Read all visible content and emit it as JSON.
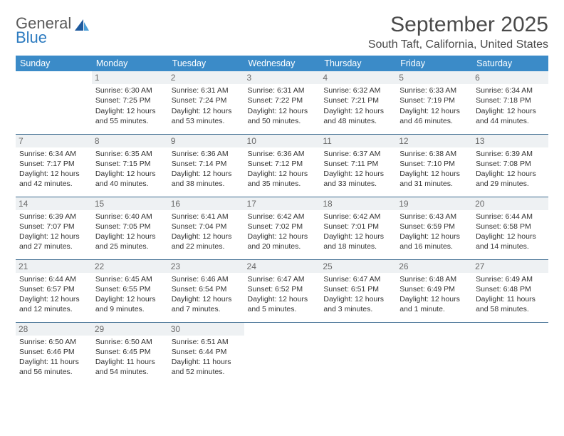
{
  "logo": {
    "general": "General",
    "blue": "Blue"
  },
  "title": "September 2025",
  "location": "South Taft, California, United States",
  "colors": {
    "header_bg": "#3b8bc8",
    "header_fg": "#ffffff",
    "daynum_bg": "#eef1f3",
    "daynum_fg": "#6a6a6a",
    "rule": "#3b6a8f",
    "logo_gray": "#5a5a5a",
    "logo_blue": "#2d7bc0"
  },
  "typography": {
    "title_fontsize": 30,
    "location_fontsize": 16,
    "th_fontsize": 12.5,
    "cell_fontsize": 10.5,
    "daynum_fontsize": 12
  },
  "weekdays": [
    "Sunday",
    "Monday",
    "Tuesday",
    "Wednesday",
    "Thursday",
    "Friday",
    "Saturday"
  ],
  "weeks": [
    [
      null,
      {
        "n": "1",
        "sr": "Sunrise: 6:30 AM",
        "ss": "Sunset: 7:25 PM",
        "dl": "Daylight: 12 hours and 55 minutes."
      },
      {
        "n": "2",
        "sr": "Sunrise: 6:31 AM",
        "ss": "Sunset: 7:24 PM",
        "dl": "Daylight: 12 hours and 53 minutes."
      },
      {
        "n": "3",
        "sr": "Sunrise: 6:31 AM",
        "ss": "Sunset: 7:22 PM",
        "dl": "Daylight: 12 hours and 50 minutes."
      },
      {
        "n": "4",
        "sr": "Sunrise: 6:32 AM",
        "ss": "Sunset: 7:21 PM",
        "dl": "Daylight: 12 hours and 48 minutes."
      },
      {
        "n": "5",
        "sr": "Sunrise: 6:33 AM",
        "ss": "Sunset: 7:19 PM",
        "dl": "Daylight: 12 hours and 46 minutes."
      },
      {
        "n": "6",
        "sr": "Sunrise: 6:34 AM",
        "ss": "Sunset: 7:18 PM",
        "dl": "Daylight: 12 hours and 44 minutes."
      }
    ],
    [
      {
        "n": "7",
        "sr": "Sunrise: 6:34 AM",
        "ss": "Sunset: 7:17 PM",
        "dl": "Daylight: 12 hours and 42 minutes."
      },
      {
        "n": "8",
        "sr": "Sunrise: 6:35 AM",
        "ss": "Sunset: 7:15 PM",
        "dl": "Daylight: 12 hours and 40 minutes."
      },
      {
        "n": "9",
        "sr": "Sunrise: 6:36 AM",
        "ss": "Sunset: 7:14 PM",
        "dl": "Daylight: 12 hours and 38 minutes."
      },
      {
        "n": "10",
        "sr": "Sunrise: 6:36 AM",
        "ss": "Sunset: 7:12 PM",
        "dl": "Daylight: 12 hours and 35 minutes."
      },
      {
        "n": "11",
        "sr": "Sunrise: 6:37 AM",
        "ss": "Sunset: 7:11 PM",
        "dl": "Daylight: 12 hours and 33 minutes."
      },
      {
        "n": "12",
        "sr": "Sunrise: 6:38 AM",
        "ss": "Sunset: 7:10 PM",
        "dl": "Daylight: 12 hours and 31 minutes."
      },
      {
        "n": "13",
        "sr": "Sunrise: 6:39 AM",
        "ss": "Sunset: 7:08 PM",
        "dl": "Daylight: 12 hours and 29 minutes."
      }
    ],
    [
      {
        "n": "14",
        "sr": "Sunrise: 6:39 AM",
        "ss": "Sunset: 7:07 PM",
        "dl": "Daylight: 12 hours and 27 minutes."
      },
      {
        "n": "15",
        "sr": "Sunrise: 6:40 AM",
        "ss": "Sunset: 7:05 PM",
        "dl": "Daylight: 12 hours and 25 minutes."
      },
      {
        "n": "16",
        "sr": "Sunrise: 6:41 AM",
        "ss": "Sunset: 7:04 PM",
        "dl": "Daylight: 12 hours and 22 minutes."
      },
      {
        "n": "17",
        "sr": "Sunrise: 6:42 AM",
        "ss": "Sunset: 7:02 PM",
        "dl": "Daylight: 12 hours and 20 minutes."
      },
      {
        "n": "18",
        "sr": "Sunrise: 6:42 AM",
        "ss": "Sunset: 7:01 PM",
        "dl": "Daylight: 12 hours and 18 minutes."
      },
      {
        "n": "19",
        "sr": "Sunrise: 6:43 AM",
        "ss": "Sunset: 6:59 PM",
        "dl": "Daylight: 12 hours and 16 minutes."
      },
      {
        "n": "20",
        "sr": "Sunrise: 6:44 AM",
        "ss": "Sunset: 6:58 PM",
        "dl": "Daylight: 12 hours and 14 minutes."
      }
    ],
    [
      {
        "n": "21",
        "sr": "Sunrise: 6:44 AM",
        "ss": "Sunset: 6:57 PM",
        "dl": "Daylight: 12 hours and 12 minutes."
      },
      {
        "n": "22",
        "sr": "Sunrise: 6:45 AM",
        "ss": "Sunset: 6:55 PM",
        "dl": "Daylight: 12 hours and 9 minutes."
      },
      {
        "n": "23",
        "sr": "Sunrise: 6:46 AM",
        "ss": "Sunset: 6:54 PM",
        "dl": "Daylight: 12 hours and 7 minutes."
      },
      {
        "n": "24",
        "sr": "Sunrise: 6:47 AM",
        "ss": "Sunset: 6:52 PM",
        "dl": "Daylight: 12 hours and 5 minutes."
      },
      {
        "n": "25",
        "sr": "Sunrise: 6:47 AM",
        "ss": "Sunset: 6:51 PM",
        "dl": "Daylight: 12 hours and 3 minutes."
      },
      {
        "n": "26",
        "sr": "Sunrise: 6:48 AM",
        "ss": "Sunset: 6:49 PM",
        "dl": "Daylight: 12 hours and 1 minute."
      },
      {
        "n": "27",
        "sr": "Sunrise: 6:49 AM",
        "ss": "Sunset: 6:48 PM",
        "dl": "Daylight: 11 hours and 58 minutes."
      }
    ],
    [
      {
        "n": "28",
        "sr": "Sunrise: 6:50 AM",
        "ss": "Sunset: 6:46 PM",
        "dl": "Daylight: 11 hours and 56 minutes."
      },
      {
        "n": "29",
        "sr": "Sunrise: 6:50 AM",
        "ss": "Sunset: 6:45 PM",
        "dl": "Daylight: 11 hours and 54 minutes."
      },
      {
        "n": "30",
        "sr": "Sunrise: 6:51 AM",
        "ss": "Sunset: 6:44 PM",
        "dl": "Daylight: 11 hours and 52 minutes."
      },
      null,
      null,
      null,
      null
    ]
  ]
}
